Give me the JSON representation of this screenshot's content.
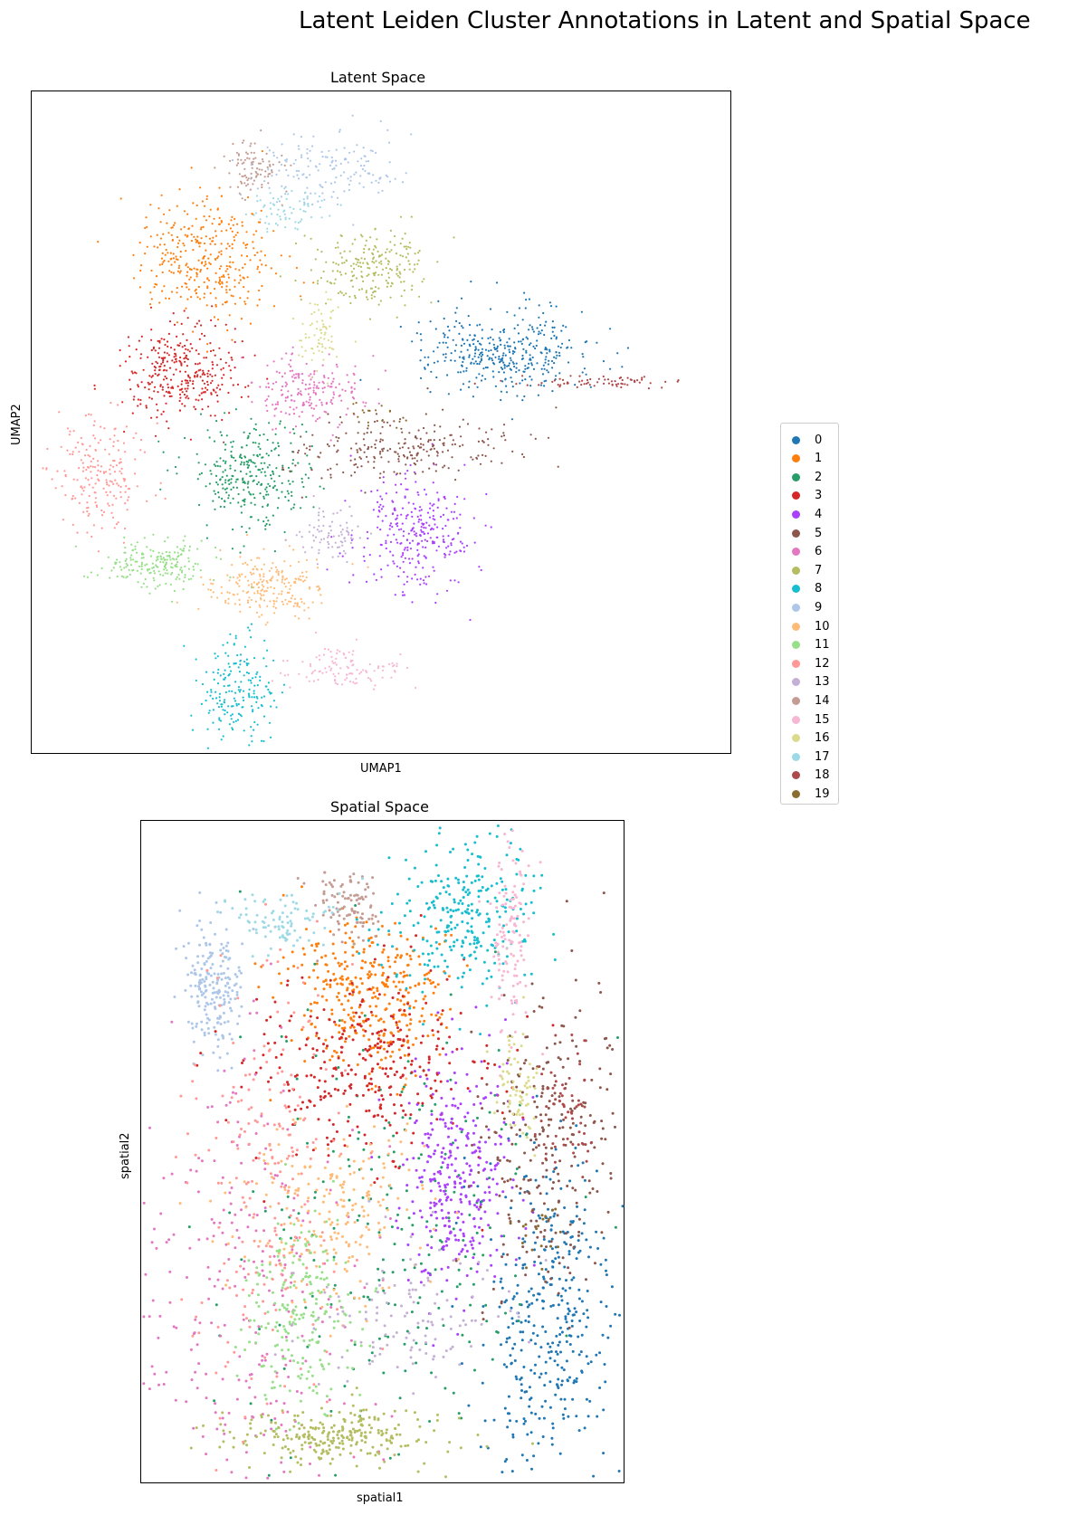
{
  "figure": {
    "title": "Latent Leiden Cluster Annotations in Latent and Spatial Space"
  },
  "chart_data": [
    {
      "type": "scatter",
      "title": "Latent Space",
      "xlabel": "UMAP1",
      "ylabel": "UMAP2",
      "ticks": "none",
      "grid": false,
      "legend_placement": "right",
      "clusters": [
        {
          "label": "0",
          "color": "#1f77b4",
          "centroid": [
            8.3,
            7.4
          ],
          "spread": [
            0.75,
            0.42
          ],
          "n": 380
        },
        {
          "label": "1",
          "color": "#ff7f0e",
          "centroid": [
            2.7,
            9.3
          ],
          "spread": [
            0.6,
            0.6
          ],
          "n": 360
        },
        {
          "label": "2",
          "color": "#279e68",
          "centroid": [
            3.6,
            5.0
          ],
          "spread": [
            0.55,
            0.5
          ],
          "n": 300
        },
        {
          "label": "3",
          "color": "#d62728",
          "centroid": [
            2.3,
            7.0
          ],
          "spread": [
            0.55,
            0.45
          ],
          "n": 320
        },
        {
          "label": "4",
          "color": "#aa40fc",
          "centroid": [
            6.6,
            3.9
          ],
          "spread": [
            0.55,
            0.55
          ],
          "n": 300
        },
        {
          "label": "5",
          "color": "#8c564b",
          "centroid": [
            6.4,
            5.5
          ],
          "spread": [
            1.1,
            0.3
          ],
          "n": 240
        },
        {
          "label": "6",
          "color": "#e377c2",
          "centroid": [
            4.7,
            6.6
          ],
          "spread": [
            0.55,
            0.35
          ],
          "n": 200
        },
        {
          "label": "7",
          "color": "#b5bd61",
          "centroid": [
            5.8,
            9.1
          ],
          "spread": [
            0.55,
            0.4
          ],
          "n": 220
        },
        {
          "label": "8",
          "color": "#17becf",
          "centroid": [
            3.3,
            0.8
          ],
          "spread": [
            0.35,
            0.55
          ],
          "n": 200
        },
        {
          "label": "9",
          "color": "#aec7e8",
          "centroid": [
            5.0,
            11.0
          ],
          "spread": [
            0.7,
            0.35
          ],
          "n": 160
        },
        {
          "label": "10",
          "color": "#ffbb78",
          "centroid": [
            3.9,
            2.8
          ],
          "spread": [
            0.55,
            0.3
          ],
          "n": 220
        },
        {
          "label": "11",
          "color": "#98df8a",
          "centroid": [
            1.8,
            3.2
          ],
          "spread": [
            0.55,
            0.25
          ],
          "n": 200
        },
        {
          "label": "12",
          "color": "#ff9896",
          "centroid": [
            0.8,
            5.0
          ],
          "spread": [
            0.45,
            0.55
          ],
          "n": 200
        },
        {
          "label": "13",
          "color": "#c5b0d5",
          "centroid": [
            5.1,
            3.8
          ],
          "spread": [
            0.3,
            0.25
          ],
          "n": 80
        },
        {
          "label": "14",
          "color": "#c49c94",
          "centroid": [
            3.6,
            11.0
          ],
          "spread": [
            0.3,
            0.25
          ],
          "n": 90
        },
        {
          "label": "15",
          "color": "#f7b6d2",
          "centroid": [
            5.4,
            1.2
          ],
          "spread": [
            0.55,
            0.2
          ],
          "n": 110
        },
        {
          "label": "16",
          "color": "#dbdb8d",
          "centroid": [
            4.8,
            7.8
          ],
          "spread": [
            0.2,
            0.35
          ],
          "n": 70
        },
        {
          "label": "17",
          "color": "#9edae5",
          "centroid": [
            4.3,
            10.2
          ],
          "spread": [
            0.35,
            0.2
          ],
          "n": 70
        },
        {
          "label": "18",
          "color": "#ad494a",
          "centroid": [
            10.2,
            6.8
          ],
          "spread": [
            0.8,
            0.06
          ],
          "n": 70
        },
        {
          "label": "19",
          "color": "#8c6d31",
          "centroid": [
            6.0,
            6.2
          ],
          "spread": [
            0.3,
            0.15
          ],
          "n": 20
        }
      ],
      "xlim": [
        -0.5,
        12.5
      ],
      "ylim": [
        -0.5,
        12.5
      ]
    },
    {
      "type": "scatter",
      "title": "Spatial Space",
      "xlabel": "spatial1",
      "ylabel": "spatial2",
      "ticks": "none",
      "grid": false,
      "clusters": [
        {
          "label": "0",
          "color": "#1f77b4",
          "centroid": [
            8.3,
            3.0
          ],
          "spread": [
            0.7,
            1.5
          ],
          "n": 380
        },
        {
          "label": "1",
          "color": "#ff7f0e",
          "centroid": [
            4.8,
            8.8
          ],
          "spread": [
            0.8,
            0.7
          ],
          "n": 360
        },
        {
          "label": "2",
          "color": "#279e68",
          "centroid": [
            5.5,
            4.5
          ],
          "spread": [
            1.8,
            2.2
          ],
          "n": 240
        },
        {
          "label": "3",
          "color": "#d62728",
          "centroid": [
            4.8,
            7.6
          ],
          "spread": [
            1.3,
            0.8
          ],
          "n": 320
        },
        {
          "label": "4",
          "color": "#aa40fc",
          "centroid": [
            6.5,
            5.6
          ],
          "spread": [
            0.6,
            1.1
          ],
          "n": 320
        },
        {
          "label": "5",
          "color": "#8c564b",
          "centroid": [
            8.4,
            6.2
          ],
          "spread": [
            0.8,
            1.4
          ],
          "n": 260
        },
        {
          "label": "6",
          "color": "#e377c2",
          "centroid": [
            2.2,
            3.0
          ],
          "spread": [
            1.3,
            2.4
          ],
          "n": 280
        },
        {
          "label": "7",
          "color": "#b5bd61",
          "centroid": [
            4.0,
            0.9
          ],
          "spread": [
            1.2,
            0.25
          ],
          "n": 260
        },
        {
          "label": "8",
          "color": "#17becf",
          "centroid": [
            6.7,
            10.3
          ],
          "spread": [
            0.8,
            0.7
          ],
          "n": 280
        },
        {
          "label": "9",
          "color": "#aec7e8",
          "centroid": [
            1.5,
            9.0
          ],
          "spread": [
            0.3,
            0.6
          ],
          "n": 200
        },
        {
          "label": "10",
          "color": "#ffbb78",
          "centroid": [
            4.0,
            5.0
          ],
          "spread": [
            1.0,
            0.9
          ],
          "n": 220
        },
        {
          "label": "11",
          "color": "#98df8a",
          "centroid": [
            3.2,
            3.2
          ],
          "spread": [
            0.6,
            0.9
          ],
          "n": 220
        },
        {
          "label": "12",
          "color": "#ff9896",
          "centroid": [
            2.6,
            5.6
          ],
          "spread": [
            0.8,
            2.0
          ],
          "n": 220
        },
        {
          "label": "13",
          "color": "#c5b0d5",
          "centroid": [
            5.5,
            3.0
          ],
          "spread": [
            1.1,
            0.6
          ],
          "n": 120
        },
        {
          "label": "14",
          "color": "#c49c94",
          "centroid": [
            4.3,
            10.5
          ],
          "spread": [
            0.35,
            0.4
          ],
          "n": 100
        },
        {
          "label": "15",
          "color": "#f7b6d2",
          "centroid": [
            7.6,
            9.8
          ],
          "spread": [
            0.25,
            0.9
          ],
          "n": 120
        },
        {
          "label": "16",
          "color": "#dbdb8d",
          "centroid": [
            7.8,
            7.3
          ],
          "spread": [
            0.25,
            0.5
          ],
          "n": 70
        },
        {
          "label": "17",
          "color": "#9edae5",
          "centroid": [
            3.0,
            10.2
          ],
          "spread": [
            0.6,
            0.3
          ],
          "n": 90
        },
        {
          "label": "18",
          "color": "#ad494a",
          "centroid": [
            8.8,
            6.8
          ],
          "spread": [
            0.3,
            0.6
          ],
          "n": 60
        },
        {
          "label": "19",
          "color": "#8c6d31",
          "centroid": [
            8.2,
            4.5
          ],
          "spread": [
            0.3,
            0.3
          ],
          "n": 20
        }
      ],
      "xlim": [
        0,
        10
      ],
      "ylim": [
        0,
        12
      ]
    }
  ],
  "legend": {
    "entries": [
      {
        "label": "0",
        "color": "#1f77b4"
      },
      {
        "label": "1",
        "color": "#ff7f0e"
      },
      {
        "label": "2",
        "color": "#279e68"
      },
      {
        "label": "3",
        "color": "#d62728"
      },
      {
        "label": "4",
        "color": "#aa40fc"
      },
      {
        "label": "5",
        "color": "#8c564b"
      },
      {
        "label": "6",
        "color": "#e377c2"
      },
      {
        "label": "7",
        "color": "#b5bd61"
      },
      {
        "label": "8",
        "color": "#17becf"
      },
      {
        "label": "9",
        "color": "#aec7e8"
      },
      {
        "label": "10",
        "color": "#ffbb78"
      },
      {
        "label": "11",
        "color": "#98df8a"
      },
      {
        "label": "12",
        "color": "#ff9896"
      },
      {
        "label": "13",
        "color": "#c5b0d5"
      },
      {
        "label": "14",
        "color": "#c49c94"
      },
      {
        "label": "15",
        "color": "#f7b6d2"
      },
      {
        "label": "16",
        "color": "#dbdb8d"
      },
      {
        "label": "17",
        "color": "#9edae5"
      },
      {
        "label": "18",
        "color": "#ad494a"
      },
      {
        "label": "19",
        "color": "#8c6d31"
      }
    ]
  }
}
